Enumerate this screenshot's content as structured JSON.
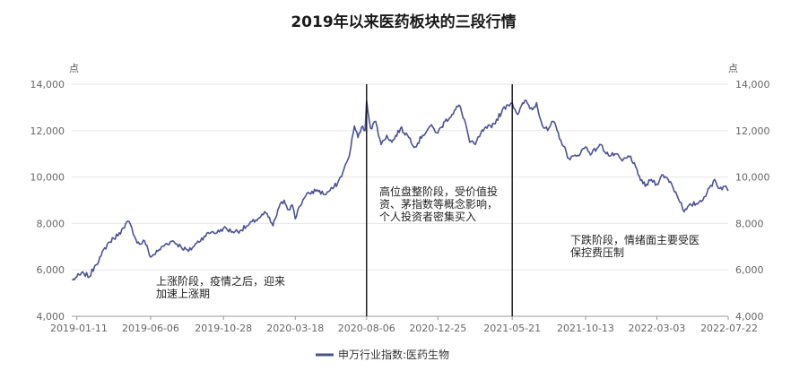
{
  "chart_data": {
    "type": "line",
    "title": "2019年以来医药板块的三段行情",
    "left_unit": "点",
    "right_unit": "点",
    "ylim": [
      4000,
      14000
    ],
    "yticks": [
      "4,000",
      "6,000",
      "8,000",
      "10,000",
      "12,000",
      "14,000"
    ],
    "ytick_values": [
      4000,
      6000,
      8000,
      10000,
      12000,
      14000
    ],
    "xlim": [
      "2019-01-01",
      "2022-07-22"
    ],
    "xticks": [
      "2019-01-11",
      "2019-06-06",
      "2019-10-28",
      "2020-03-18",
      "2020-08-06",
      "2020-12-25",
      "2021-05-21",
      "2021-10-13",
      "2022-03-03",
      "2022-07-22"
    ],
    "grid": true,
    "legend_position": "bottom",
    "series": [
      {
        "name": "申万行业指数:医药生物",
        "color": "#4a5296",
        "points": [
          [
            "2019-01-02",
            5550
          ],
          [
            "2019-01-11",
            5700
          ],
          [
            "2019-01-25",
            5850
          ],
          [
            "2019-02-05",
            5700
          ],
          [
            "2019-02-15",
            6150
          ],
          [
            "2019-02-28",
            6600
          ],
          [
            "2019-03-12",
            7100
          ],
          [
            "2019-03-25",
            7350
          ],
          [
            "2019-04-05",
            7600
          ],
          [
            "2019-04-15",
            7800
          ],
          [
            "2019-04-22",
            8100
          ],
          [
            "2019-04-30",
            7800
          ],
          [
            "2019-05-08",
            7300
          ],
          [
            "2019-05-15",
            7100
          ],
          [
            "2019-05-25",
            7250
          ],
          [
            "2019-06-06",
            6550
          ],
          [
            "2019-06-20",
            6800
          ],
          [
            "2019-07-05",
            7100
          ],
          [
            "2019-07-20",
            7250
          ],
          [
            "2019-08-05",
            7000
          ],
          [
            "2019-08-20",
            6800
          ],
          [
            "2019-09-05",
            7150
          ],
          [
            "2019-09-20",
            7450
          ],
          [
            "2019-10-05",
            7650
          ],
          [
            "2019-10-15",
            7600
          ],
          [
            "2019-10-28",
            7800
          ],
          [
            "2019-11-15",
            7650
          ],
          [
            "2019-11-30",
            7700
          ],
          [
            "2019-12-15",
            7900
          ],
          [
            "2019-12-31",
            8150
          ],
          [
            "2020-01-10",
            8300
          ],
          [
            "2020-01-20",
            8450
          ],
          [
            "2020-02-03",
            7900
          ],
          [
            "2020-02-15",
            8700
          ],
          [
            "2020-02-25",
            9000
          ],
          [
            "2020-03-05",
            8600
          ],
          [
            "2020-03-12",
            8800
          ],
          [
            "2020-03-18",
            8200
          ],
          [
            "2020-03-25",
            8700
          ],
          [
            "2020-04-05",
            9100
          ],
          [
            "2020-04-15",
            9300
          ],
          [
            "2020-04-30",
            9450
          ],
          [
            "2020-05-15",
            9250
          ],
          [
            "2020-05-31",
            9500
          ],
          [
            "2020-06-10",
            9750
          ],
          [
            "2020-06-20",
            10200
          ],
          [
            "2020-06-30",
            10750
          ],
          [
            "2020-07-06",
            11300
          ],
          [
            "2020-07-13",
            12200
          ],
          [
            "2020-07-20",
            11700
          ],
          [
            "2020-07-27",
            12150
          ],
          [
            "2020-08-03",
            12000
          ],
          [
            "2020-08-06",
            13300
          ],
          [
            "2020-08-14",
            12100
          ],
          [
            "2020-08-24",
            12400
          ],
          [
            "2020-09-04",
            11400
          ],
          [
            "2020-09-15",
            11800
          ],
          [
            "2020-09-25",
            11500
          ],
          [
            "2020-10-12",
            12100
          ],
          [
            "2020-10-26",
            11800
          ],
          [
            "2020-11-10",
            11300
          ],
          [
            "2020-11-25",
            11800
          ],
          [
            "2020-12-10",
            12200
          ],
          [
            "2020-12-25",
            11900
          ],
          [
            "2021-01-08",
            12400
          ],
          [
            "2021-01-22",
            12700
          ],
          [
            "2021-02-05",
            13100
          ],
          [
            "2021-02-18",
            12300
          ],
          [
            "2021-02-26",
            11500
          ],
          [
            "2021-03-09",
            11400
          ],
          [
            "2021-03-20",
            11900
          ],
          [
            "2021-04-01",
            12100
          ],
          [
            "2021-04-15",
            12300
          ],
          [
            "2021-04-30",
            12800
          ],
          [
            "2021-05-10",
            13100
          ],
          [
            "2021-05-21",
            13200
          ],
          [
            "2021-06-01",
            12700
          ],
          [
            "2021-06-15",
            13300
          ],
          [
            "2021-06-30",
            12900
          ],
          [
            "2021-07-08",
            13200
          ],
          [
            "2021-07-20",
            12200
          ],
          [
            "2021-07-30",
            12000
          ],
          [
            "2021-08-10",
            12400
          ],
          [
            "2021-08-25",
            11600
          ],
          [
            "2021-09-10",
            10800
          ],
          [
            "2021-09-25",
            10900
          ],
          [
            "2021-10-13",
            11300
          ],
          [
            "2021-10-25",
            11000
          ],
          [
            "2021-11-10",
            11400
          ],
          [
            "2021-11-30",
            10900
          ],
          [
            "2021-12-10",
            11000
          ],
          [
            "2021-12-24",
            10700
          ],
          [
            "2022-01-10",
            10900
          ],
          [
            "2022-01-25",
            10100
          ],
          [
            "2022-02-08",
            9600
          ],
          [
            "2022-02-20",
            9900
          ],
          [
            "2022-03-03",
            9700
          ],
          [
            "2022-03-15",
            10100
          ],
          [
            "2022-03-30",
            9800
          ],
          [
            "2022-04-12",
            9200
          ],
          [
            "2022-04-20",
            8900
          ],
          [
            "2022-04-26",
            8500
          ],
          [
            "2022-05-10",
            8800
          ],
          [
            "2022-05-25",
            8900
          ],
          [
            "2022-06-10",
            9300
          ],
          [
            "2022-06-25",
            9900
          ],
          [
            "2022-07-05",
            9500
          ],
          [
            "2022-07-15",
            9600
          ],
          [
            "2022-07-22",
            9400
          ]
        ]
      }
    ],
    "phase_dividers": [
      "2020-08-06",
      "2021-05-21"
    ],
    "annotations": [
      {
        "lines": [
          "上涨阶段，疫情之后，迎来",
          "加速上涨期"
        ]
      },
      {
        "lines": [
          "高位盘整阶段，受价值投",
          "资、茅指数等概念影响，",
          "个人投资者密集买入"
        ]
      },
      {
        "lines": [
          "下跌阶段，情绪面主要受医",
          "保控费压制"
        ]
      }
    ]
  }
}
